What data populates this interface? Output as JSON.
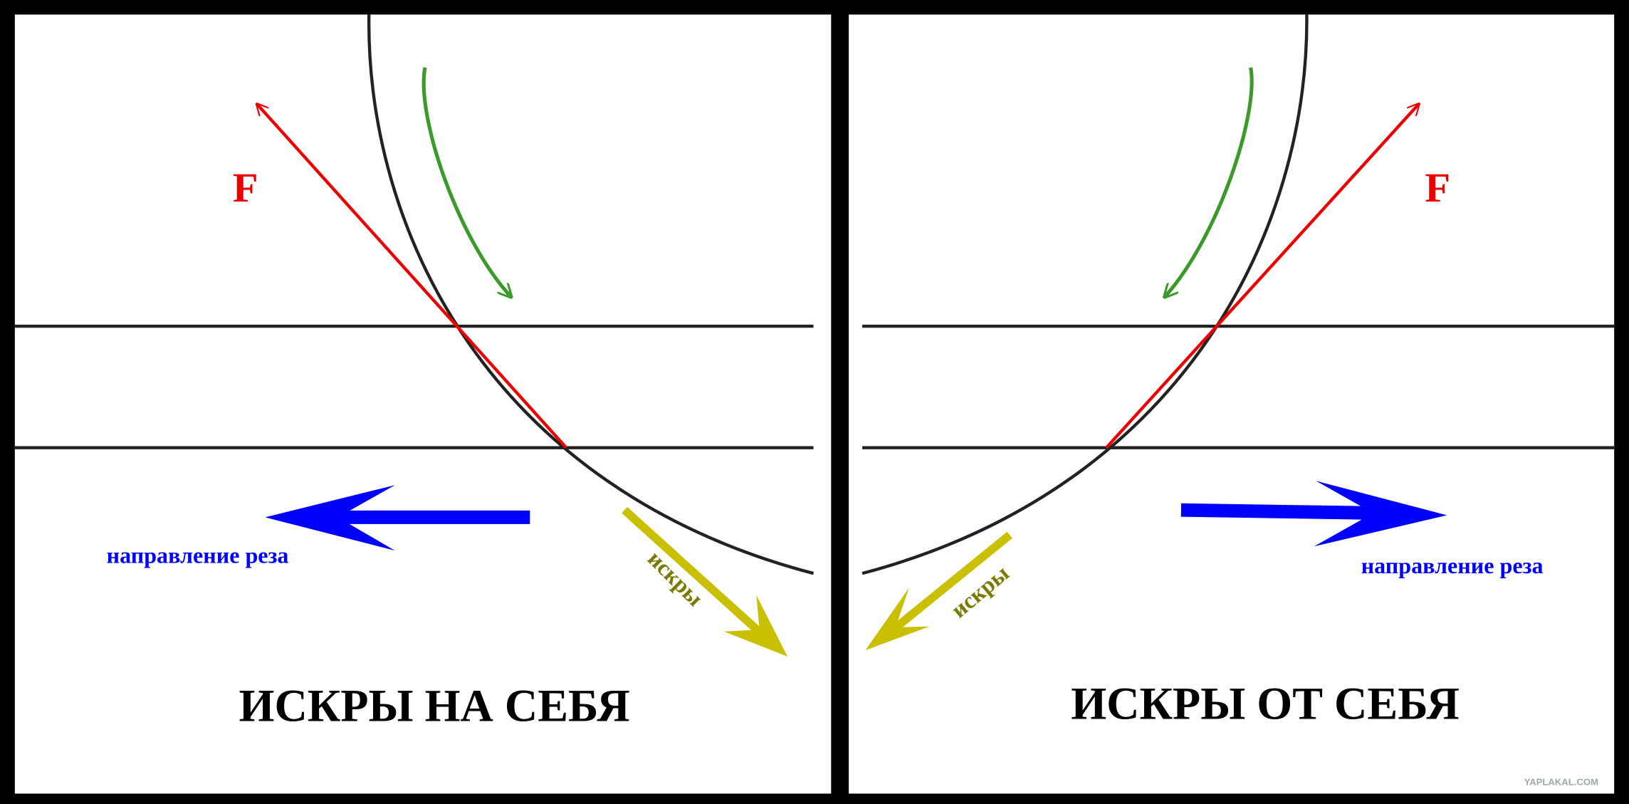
{
  "panels": [
    {
      "title": "ИСКРЫ НА СЕБЯ",
      "force": "F",
      "direction": "направление реза",
      "sparks": "искры"
    },
    {
      "title": "ИСКРЫ ОТ СЕБЯ",
      "force": "F",
      "direction": "направление реза",
      "sparks": "искры"
    }
  ],
  "watermark": "YAPLAKAL.COM"
}
